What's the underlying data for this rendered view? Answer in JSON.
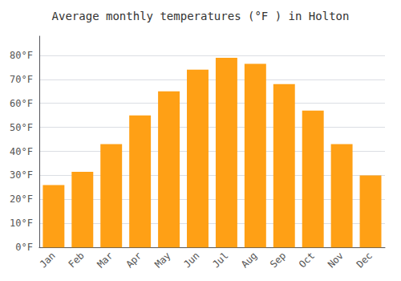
{
  "chart_data": {
    "type": "bar",
    "title": "Average monthly temperatures (°F ) in Holton",
    "categories": [
      "Jan",
      "Feb",
      "Mar",
      "Apr",
      "May",
      "Jun",
      "Jul",
      "Aug",
      "Sep",
      "Oct",
      "Nov",
      "Dec"
    ],
    "values": [
      26,
      31.5,
      43,
      55,
      65,
      74,
      79,
      76.5,
      68,
      57,
      43,
      30
    ],
    "color": "#FFA015",
    "ylim": [
      0,
      88
    ],
    "yticks": [
      {
        "value": 0,
        "label": "0°F"
      },
      {
        "value": 10,
        "label": "10°F"
      },
      {
        "value": 20,
        "label": "20°F"
      },
      {
        "value": 30,
        "label": "30°F"
      },
      {
        "value": 40,
        "label": "40°F"
      },
      {
        "value": 50,
        "label": "50°F"
      },
      {
        "value": 60,
        "label": "60°F"
      },
      {
        "value": 70,
        "label": "70°F"
      },
      {
        "value": 80,
        "label": "80°F"
      }
    ],
    "grid": true
  }
}
